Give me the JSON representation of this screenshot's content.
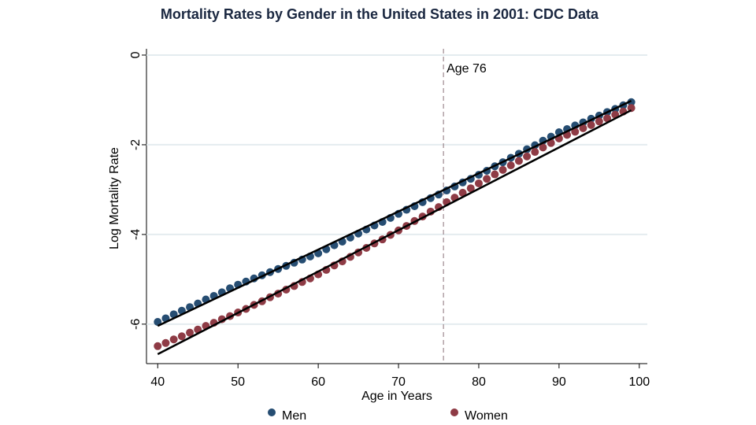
{
  "chart_data": {
    "type": "scatter",
    "title": "Mortality Rates by Gender in the United States in 2001: CDC Data",
    "x_label": "Age in Years",
    "y_label": "Log Mortality Rate",
    "xlim": [
      38.6,
      101
    ],
    "ylim": [
      -6.88,
      0.14
    ],
    "xticks": [
      40,
      50,
      60,
      70,
      80,
      90,
      100
    ],
    "yticks": [
      0,
      -2,
      -4,
      -6
    ],
    "grid": true,
    "legend": "bottom",
    "x": [
      40,
      41,
      42,
      43,
      44,
      45,
      46,
      47,
      48,
      49,
      50,
      51,
      52,
      53,
      54,
      55,
      56,
      57,
      58,
      59,
      60,
      61,
      62,
      63,
      64,
      65,
      66,
      67,
      68,
      69,
      70,
      71,
      72,
      73,
      74,
      75,
      76,
      77,
      78,
      79,
      80,
      81,
      82,
      83,
      84,
      85,
      86,
      87,
      88,
      89,
      90,
      91,
      92,
      93,
      94,
      95,
      96,
      97,
      98,
      99
    ],
    "series": [
      {
        "name": "Men",
        "color": "#264d72",
        "values": [
          -5.95,
          -5.87,
          -5.78,
          -5.7,
          -5.62,
          -5.54,
          -5.45,
          -5.37,
          -5.29,
          -5.2,
          -5.12,
          -5.05,
          -4.98,
          -4.91,
          -4.84,
          -4.77,
          -4.7,
          -4.63,
          -4.56,
          -4.49,
          -4.42,
          -4.33,
          -4.24,
          -4.16,
          -4.07,
          -3.98,
          -3.89,
          -3.8,
          -3.72,
          -3.63,
          -3.54,
          -3.45,
          -3.37,
          -3.28,
          -3.19,
          -3.11,
          -3.02,
          -2.93,
          -2.84,
          -2.76,
          -2.67,
          -2.58,
          -2.48,
          -2.39,
          -2.29,
          -2.2,
          -2.1,
          -2.01,
          -1.91,
          -1.82,
          -1.72,
          -1.65,
          -1.57,
          -1.5,
          -1.42,
          -1.35,
          -1.27,
          -1.2,
          -1.12,
          -1.05
        ]
      },
      {
        "name": "Women",
        "color": "#8e3b45",
        "values": [
          -6.49,
          -6.42,
          -6.34,
          -6.27,
          -6.19,
          -6.12,
          -6.04,
          -5.97,
          -5.89,
          -5.82,
          -5.74,
          -5.66,
          -5.57,
          -5.49,
          -5.4,
          -5.32,
          -5.23,
          -5.15,
          -5.06,
          -4.98,
          -4.89,
          -4.79,
          -4.69,
          -4.6,
          -4.5,
          -4.4,
          -4.3,
          -4.2,
          -4.11,
          -4.01,
          -3.91,
          -3.81,
          -3.7,
          -3.6,
          -3.49,
          -3.39,
          -3.28,
          -3.18,
          -3.07,
          -2.97,
          -2.86,
          -2.76,
          -2.66,
          -2.56,
          -2.46,
          -2.36,
          -2.26,
          -2.16,
          -2.06,
          -1.96,
          -1.86,
          -1.78,
          -1.71,
          -1.63,
          -1.56,
          -1.48,
          -1.41,
          -1.33,
          -1.26,
          -1.18
        ]
      }
    ],
    "fit_lines": [
      {
        "color": "#000000",
        "x": [
          40,
          99
        ],
        "values": [
          -6.04,
          -1.02
        ]
      },
      {
        "color": "#000000",
        "x": [
          40,
          99
        ],
        "values": [
          -6.67,
          -1.23
        ]
      }
    ],
    "annotation": {
      "text": "Age 76",
      "x": 75.6
    }
  }
}
